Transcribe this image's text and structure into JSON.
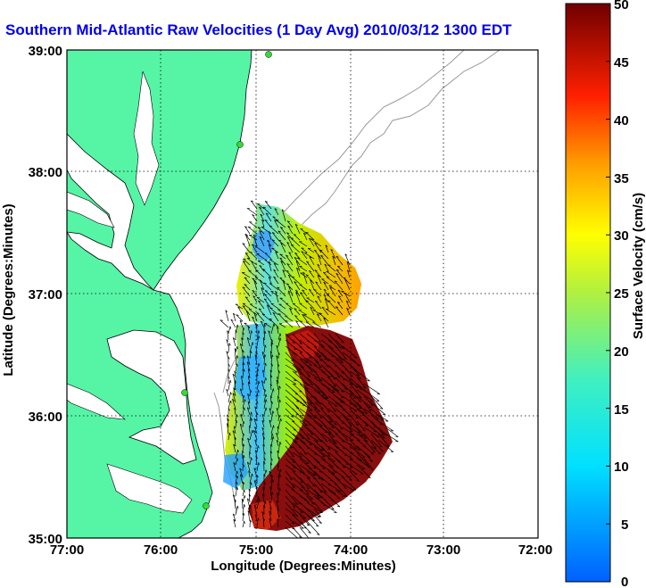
{
  "title": "Southern Mid-Atlantic Raw Velocities (1 Day Avg) 2010/03/12 1300 EDT",
  "x_axis": {
    "label": "Longitude (Degrees:Minutes)",
    "ticks": [
      "77:00",
      "76:00",
      "75:00",
      "74:00",
      "73:00",
      "72:00"
    ]
  },
  "y_axis": {
    "label": "Latitude (Degrees:Minutes)",
    "ticks": [
      "39:00",
      "38:00",
      "37:00",
      "36:00",
      "35:00"
    ]
  },
  "colorbar": {
    "label": "Surface Velocity (cm/s)",
    "ticks": [
      "50",
      "45",
      "40",
      "35",
      "30",
      "25",
      "20",
      "15",
      "10",
      "5",
      "0"
    ],
    "min": 0,
    "max": 50
  },
  "colors": {
    "land": "#55f5a5",
    "coastline": "#000000",
    "bathymetry": "#999999",
    "title": "#0000ee",
    "station": "#33dd33"
  }
}
